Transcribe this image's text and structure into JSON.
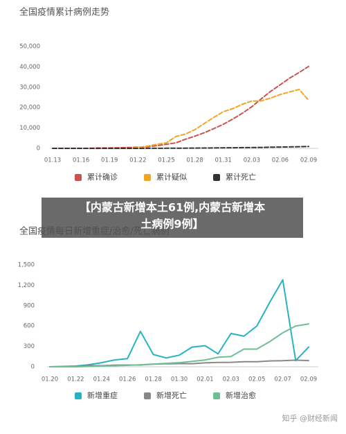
{
  "chart_data": [
    {
      "type": "line",
      "title": "全国疫情累计病例走势",
      "categories": [
        "01.13",
        null,
        null,
        "01.16",
        null,
        null,
        "01.19",
        null,
        null,
        "01.22",
        null,
        null,
        "01.25",
        null,
        null,
        "01.28",
        null,
        null,
        "01.31",
        null,
        null,
        "02.03",
        null,
        null,
        "02.06",
        null,
        null,
        "02.09"
      ],
      "series": [
        {
          "name": "累计确诊",
          "color": "#c9524f",
          "values": [
            40,
            40,
            40,
            45,
            60,
            200,
            200,
            300,
            440,
            570,
            830,
            1300,
            2000,
            2700,
            4500,
            6000,
            7700,
            9700,
            11800,
            14400,
            17200,
            20400,
            24300,
            28000,
            31200,
            34500,
            37200,
            40200
          ]
        },
        {
          "name": "累计疑似",
          "color": "#f0a623",
          "values": [
            0,
            0,
            0,
            0,
            0,
            0,
            0,
            0,
            0,
            400,
            1100,
            2000,
            2700,
            5800,
            7000,
            9200,
            12200,
            15200,
            18000,
            19500,
            21600,
            23200,
            23300,
            24700,
            26400,
            27700,
            28900,
            23600
          ]
        },
        {
          "name": "累计死亡",
          "color": "#333333",
          "values": [
            1,
            1,
            1,
            2,
            2,
            3,
            3,
            4,
            9,
            17,
            25,
            41,
            56,
            80,
            106,
            132,
            170,
            213,
            259,
            304,
            361,
            425,
            490,
            563,
            636,
            722,
            811,
            908
          ]
        }
      ],
      "ylim": [
        0,
        50000
      ],
      "yticks": [
        0,
        {
          "value": 10000,
          "label": "10,000"
        },
        {
          "value": 20000,
          "label": "20,000"
        },
        {
          "value": 30000,
          "label": "30,000"
        },
        {
          "value": 40000,
          "label": "40,000"
        },
        {
          "value": 50000,
          "label": "50,000"
        }
      ],
      "grid": false,
      "dashed": true
    },
    {
      "type": "line",
      "title": "全国疫情每日新增重症/治愈/死亡病例",
      "categories": [
        "01.20",
        null,
        "01.22",
        null,
        "01.24",
        null,
        "01.26",
        null,
        "01.28",
        null,
        "01.30",
        null,
        "02.01",
        null,
        "02.03",
        null,
        "02.05",
        null,
        "02.07",
        null,
        "02.09"
      ],
      "series": [
        {
          "name": "新增重症",
          "color": "#25b3c4",
          "values": [
            0,
            5,
            10,
            30,
            60,
            100,
            120,
            520,
            180,
            130,
            170,
            290,
            310,
            190,
            490,
            450,
            600,
            950,
            1280,
            90,
            290
          ]
        },
        {
          "name": "新增死亡",
          "color": "#888888",
          "values": [
            0,
            3,
            8,
            16,
            15,
            24,
            26,
            26,
            38,
            43,
            46,
            45,
            57,
            64,
            65,
            73,
            73,
            86,
            89,
            97,
            91
          ]
        },
        {
          "name": "新增治愈",
          "color": "#6cbf95",
          "values": [
            0,
            0,
            0,
            5,
            10,
            15,
            20,
            30,
            40,
            50,
            60,
            80,
            100,
            140,
            150,
            260,
            260,
            370,
            500,
            600,
            630
          ]
        }
      ],
      "ylim": [
        0,
        1500
      ],
      "yticks": [
        0,
        300,
        600,
        900,
        {
          "value": 1200,
          "label": "1,200"
        },
        {
          "value": 1500,
          "label": "1,500"
        }
      ],
      "grid": false,
      "dashed": false
    }
  ],
  "banner": [
    "【内蒙古新增本土61例,内蒙古新增本",
    "土病例9例】"
  ],
  "watermark": "知乎 @财经新闻"
}
